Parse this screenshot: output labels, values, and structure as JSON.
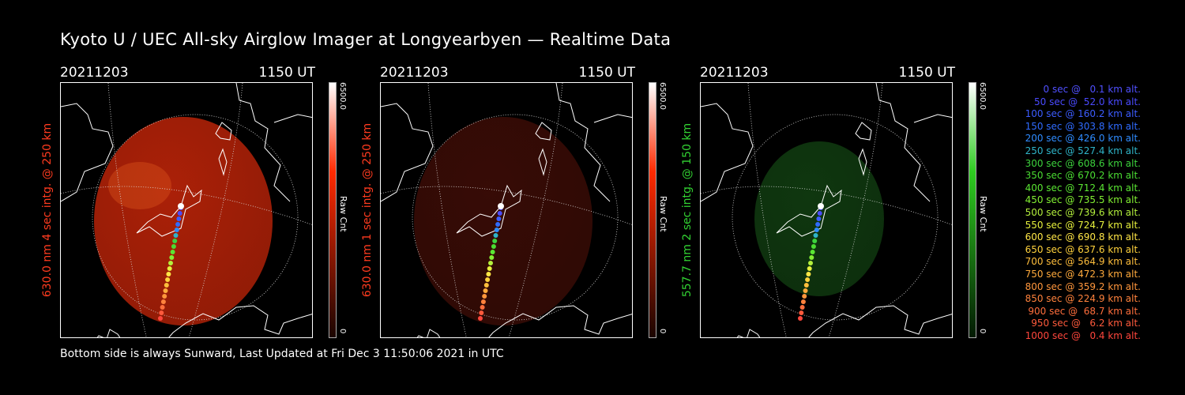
{
  "title": "Kyoto U / UEC All-sky Airglow Imager at Longyearbyen — Realtime Data",
  "footer": "Bottom side is always Sunward, Last Updated at Fri Dec  3 11:50:06 2021 in UTC",
  "panels": [
    {
      "date": "20211203",
      "time": "1150 UT",
      "label": "630.0 nm 4 sec intg. @ 250 km",
      "label_color": "#ff3b1f",
      "cbar_max": "6500.0",
      "cbar_min": "0",
      "cbar_unit": "Raw Cnt",
      "cbar_color": "#ff2a00",
      "glow_color": "#b42208",
      "glow_opacity": 0.95
    },
    {
      "date": "20211203",
      "time": "1150 UT",
      "label": "630.0 nm 1 sec intg. @ 250 km",
      "label_color": "#ff3b1f",
      "cbar_max": "6500.0",
      "cbar_min": "0",
      "cbar_unit": "Raw Cnt",
      "cbar_color": "#ff2a00",
      "glow_color": "#3a0c06",
      "glow_opacity": 0.95
    },
    {
      "date": "20211203",
      "time": "1150 UT",
      "label": "557.7 nm 2 sec intg. @ 150 km",
      "label_color": "#32d232",
      "cbar_max": "6500.0",
      "cbar_min": "0",
      "cbar_unit": "Raw Cnt",
      "cbar_color": "#2ecc20",
      "glow_color": "#103a10",
      "glow_opacity": 0.95
    }
  ],
  "legend": [
    {
      "text": "0 sec @   0.1 km alt.",
      "color": "#5050ff"
    },
    {
      "text": "50 sec @  52.0 km alt.",
      "color": "#4a4aff"
    },
    {
      "text": "100 sec @ 160.2 km alt.",
      "color": "#3c5cff"
    },
    {
      "text": "150 sec @ 303.8 km alt.",
      "color": "#2f6bff"
    },
    {
      "text": "200 sec @ 426.0 km alt.",
      "color": "#2f8cff"
    },
    {
      "text": "250 sec @ 527.4 km alt.",
      "color": "#2fb4c8"
    },
    {
      "text": "300 sec @ 608.6 km alt.",
      "color": "#3cd23c"
    },
    {
      "text": "350 sec @ 670.2 km alt.",
      "color": "#4adc32"
    },
    {
      "text": "400 sec @ 712.4 km alt.",
      "color": "#5ae632"
    },
    {
      "text": "450 sec @ 735.5 km alt.",
      "color": "#82f032"
    },
    {
      "text": "500 sec @ 739.6 km alt.",
      "color": "#b4f03c"
    },
    {
      "text": "550 sec @ 724.7 km alt.",
      "color": "#e6f03c"
    },
    {
      "text": "600 sec @ 690.8 km alt.",
      "color": "#ffe646"
    },
    {
      "text": "650 sec @ 637.6 km alt.",
      "color": "#ffd23c"
    },
    {
      "text": "700 sec @ 564.9 km alt.",
      "color": "#ffbe3c"
    },
    {
      "text": "750 sec @ 472.3 km alt.",
      "color": "#ffaa3c"
    },
    {
      "text": "800 sec @ 359.2 km alt.",
      "color": "#ff963c"
    },
    {
      "text": "850 sec @ 224.9 km alt.",
      "color": "#ff823c"
    },
    {
      "text": "900 sec @  68.7 km alt.",
      "color": "#ff6e3c"
    },
    {
      "text": "950 sec @   6.2 km alt.",
      "color": "#ff5a3c"
    },
    {
      "text": "1000 sec @   0.4 km alt.",
      "color": "#ff463c"
    }
  ]
}
